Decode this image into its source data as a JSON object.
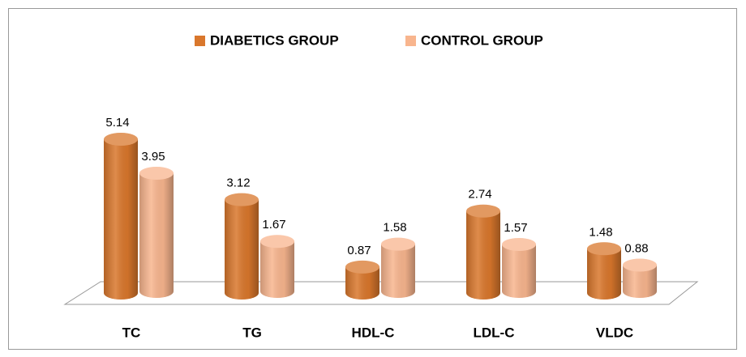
{
  "chart_data": {
    "type": "bar3d",
    "categories": [
      "TC",
      "TG",
      "HDL-C",
      "LDL-C",
      "VLDC"
    ],
    "series": [
      {
        "name": "DIABETICS GROUP",
        "color": "#d9772c",
        "values": [
          5.14,
          3.12,
          0.87,
          2.74,
          1.48
        ]
      },
      {
        "name": "CONTROL GROUP",
        "color": "#f8b58e",
        "values": [
          3.95,
          1.67,
          1.58,
          1.57,
          0.88
        ]
      }
    ],
    "legend": "top"
  }
}
